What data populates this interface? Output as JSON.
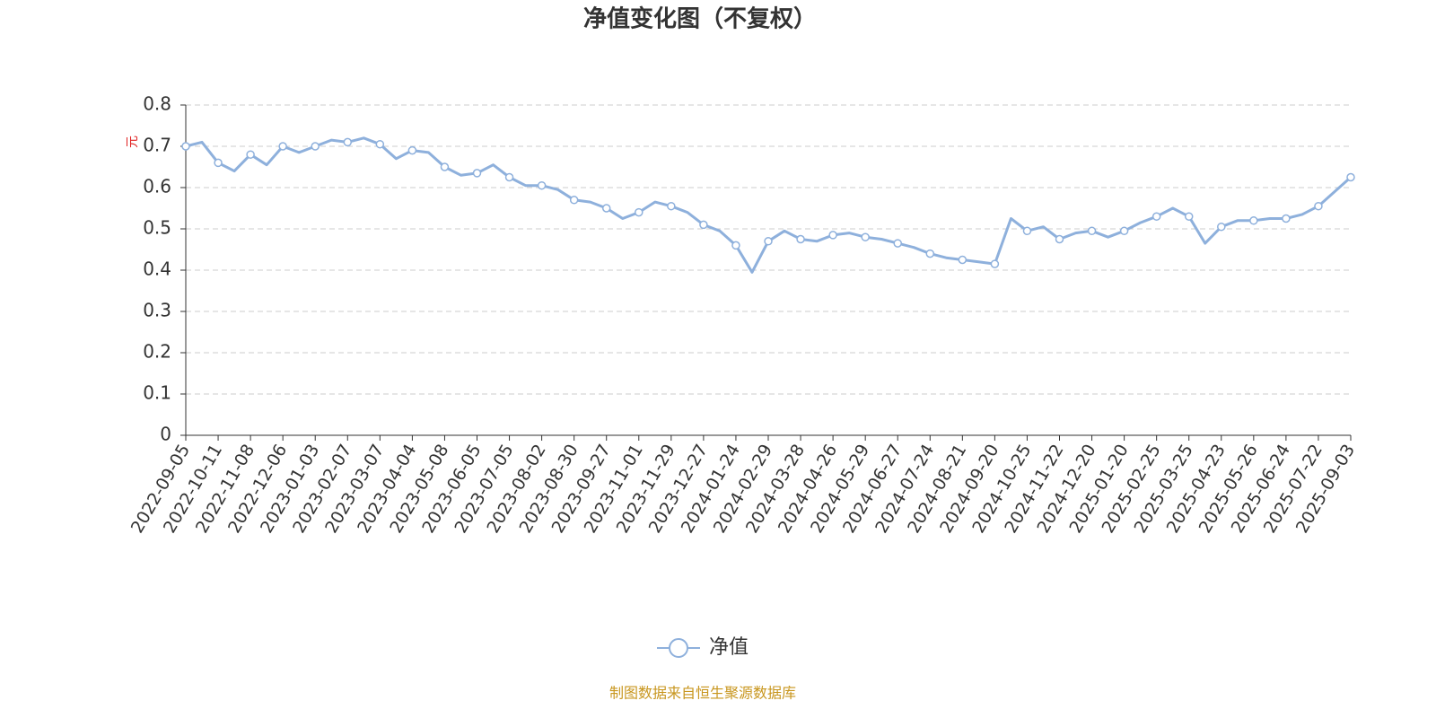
{
  "chart_data": {
    "type": "line",
    "title": "净值变化图（不复权）",
    "y_unit": "元",
    "source": "制图数据来自恒生聚源数据库",
    "categories": [
      "2022-09-05",
      null,
      "2022-10-11",
      null,
      "2022-11-08",
      null,
      "2022-12-06",
      null,
      "2023-01-03",
      null,
      "2023-02-07",
      null,
      "2023-03-07",
      null,
      "2023-04-04",
      null,
      "2023-05-08",
      null,
      "2023-06-05",
      null,
      "2023-07-05",
      null,
      "2023-08-02",
      null,
      "2023-08-30",
      null,
      "2023-09-27",
      null,
      "2023-11-01",
      null,
      "2023-11-29",
      null,
      "2023-12-27",
      null,
      "2024-01-24",
      null,
      "2024-02-29",
      null,
      "2024-03-28",
      null,
      "2024-04-26",
      null,
      "2024-05-29",
      null,
      "2024-06-27",
      null,
      "2024-07-24",
      null,
      "2024-08-21",
      null,
      "2024-09-20",
      null,
      "2024-10-25",
      null,
      "2024-11-22",
      null,
      "2024-12-20",
      null,
      "2025-01-20",
      null,
      "2025-02-25",
      null,
      "2025-03-25",
      null,
      "2025-04-23",
      null,
      "2025-05-26",
      null,
      "2025-06-24",
      null,
      "2025-07-22",
      null,
      "2025-09-03"
    ],
    "series": [
      {
        "name": "净值",
        "color": "#8eb0dc",
        "values": [
          0.7,
          0.71,
          0.66,
          0.64,
          0.68,
          0.655,
          0.7,
          0.685,
          0.7,
          0.715,
          0.71,
          0.72,
          0.705,
          0.67,
          0.69,
          0.685,
          0.65,
          0.63,
          0.635,
          0.655,
          0.625,
          0.605,
          0.605,
          0.595,
          0.57,
          0.565,
          0.55,
          0.525,
          0.54,
          0.565,
          0.555,
          0.54,
          0.51,
          0.495,
          0.46,
          0.395,
          0.47,
          0.495,
          0.475,
          0.47,
          0.485,
          0.49,
          0.48,
          0.475,
          0.465,
          0.455,
          0.44,
          0.43,
          0.425,
          0.42,
          0.415,
          0.525,
          0.495,
          0.505,
          0.475,
          0.49,
          0.495,
          0.48,
          0.495,
          0.515,
          0.53,
          0.55,
          0.53,
          0.465,
          0.505,
          0.52,
          0.52,
          0.525,
          0.525,
          0.535,
          0.555,
          0.59,
          0.625
        ]
      }
    ],
    "ylim": [
      0,
      0.8
    ],
    "yticks": [
      0,
      0.1,
      0.2,
      0.3,
      0.4,
      0.5,
      0.6,
      0.7,
      0.8
    ],
    "grid": true
  }
}
